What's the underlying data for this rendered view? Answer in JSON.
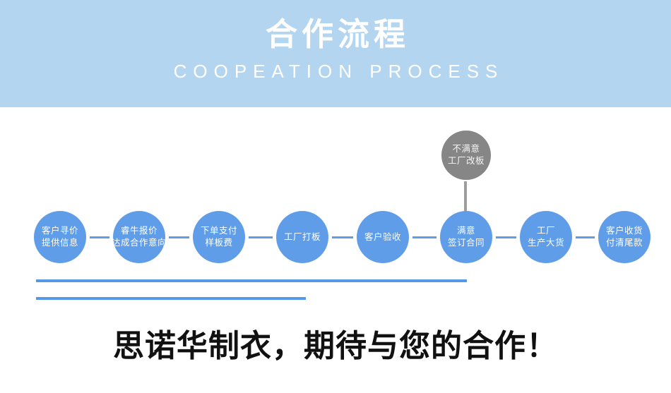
{
  "banner": {
    "title": "合作流程",
    "subtitle": "COOPEATION PROCESS"
  },
  "flow": {
    "nodes": [
      {
        "lines": [
          "客户寻价",
          "提供信息"
        ]
      },
      {
        "lines": [
          "睿牛报价",
          "达成合作意向"
        ]
      },
      {
        "lines": [
          "下单支付",
          "样板费"
        ]
      },
      {
        "lines": [
          "工厂打板"
        ]
      },
      {
        "lines": [
          "客户验收"
        ]
      },
      {
        "lines": [
          "满意",
          "签订合同"
        ]
      },
      {
        "lines": [
          "工厂",
          "生产大货"
        ]
      },
      {
        "lines": [
          "客户收货",
          "付清尾款"
        ]
      }
    ],
    "alt_node": {
      "lines": [
        "不满意",
        "工厂改板"
      ]
    }
  },
  "footer": {
    "slogan": "思诺华制衣，期待与您的合作！"
  },
  "colors": {
    "banner_bg": "#b3d5ef",
    "node_blue": "#5f9de9",
    "node_gray": "#868686",
    "accent_line": "#5598e8",
    "title_text": "#ffffff",
    "slogan_text": "#111111"
  }
}
